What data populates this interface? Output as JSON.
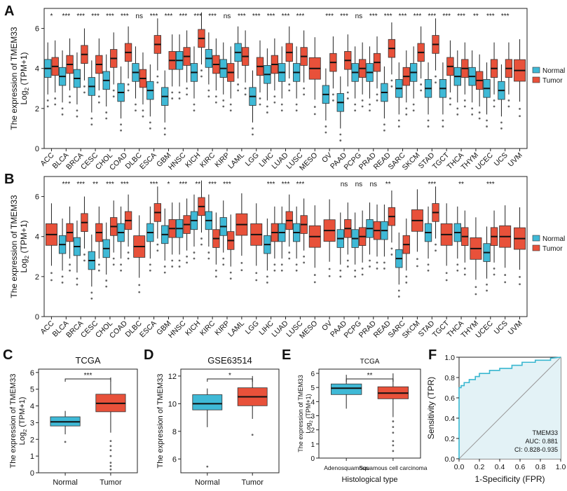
{
  "colors": {
    "normal": "#3fb9d6",
    "tumor": "#e8513a",
    "roc": "#39b7d0",
    "roc_fill": "#e3f2f6",
    "panel_bg": "#ffffff"
  },
  "chart_data": [
    {
      "panel": "A",
      "type": "boxplot",
      "ylabel": "The expression of TMEM33",
      "ylabel2": "Log2 (TPM+1)",
      "ylim": [
        0,
        7
      ],
      "yticks": [
        0,
        2,
        4,
        6
      ],
      "legend": [
        "Normal",
        "Tumor"
      ],
      "categories": [
        "ACC",
        "BLCA",
        "BRCA",
        "CESC",
        "CHOL",
        "COAD",
        "DLBC",
        "ESCA",
        "GBM",
        "HNSC",
        "KICH",
        "KIRC",
        "KIRP",
        "LAML",
        "LGG",
        "LIHC",
        "LUAD",
        "LUSC",
        "MESO",
        "OV",
        "PAAD",
        "PCPG",
        "PRAD",
        "READ",
        "SARC",
        "SKCM",
        "STAD",
        "TGCT",
        "THCA",
        "THYM",
        "UCEC",
        "UCS",
        "UVM"
      ],
      "significance": [
        "*",
        "***",
        "***",
        "***",
        "***",
        "***",
        "ns",
        "***",
        "***",
        "***",
        "***",
        "***",
        "ns",
        "***",
        "***",
        "***",
        "***",
        "***",
        "",
        "***",
        "***",
        "ns",
        "***",
        "***",
        "***",
        "***",
        "***",
        "***",
        "***",
        "**",
        "***",
        "***",
        ""
      ],
      "normal_median": [
        4.0,
        3.6,
        3.5,
        3.1,
        3.4,
        2.8,
        3.8,
        2.9,
        2.6,
        4.4,
        3.8,
        4.5,
        4.0,
        4.8,
        2.6,
        3.7,
        3.8,
        3.8,
        null,
        2.7,
        2.3,
        3.8,
        3.8,
        2.8,
        3.0,
        3.8,
        3.0,
        3.0,
        3.6,
        3.6,
        3.0,
        2.9,
        null
      ],
      "tumor_median": [
        4.1,
        4.2,
        4.7,
        4.2,
        4.5,
        4.8,
        3.5,
        5.2,
        4.4,
        4.6,
        5.5,
        4.2,
        3.8,
        4.6,
        4.1,
        4.2,
        4.8,
        4.6,
        4.0,
        4.3,
        4.4,
        4.0,
        4.3,
        5.0,
        3.6,
        4.8,
        5.2,
        4.1,
        4.0,
        3.4,
        4.0,
        4.0,
        3.9
      ]
    },
    {
      "panel": "B",
      "type": "boxplot",
      "ylabel": "The expression of TMEM33",
      "ylabel2": "Log2 (TPM+1)",
      "ylim": [
        0,
        7
      ],
      "yticks": [
        0,
        2,
        4,
        6
      ],
      "legend": [
        "Normal",
        "Tumor"
      ],
      "categories": [
        "ACC",
        "BLCA",
        "BRCA",
        "CESC",
        "CHOL",
        "COAD",
        "DLBC",
        "ESCA",
        "GBM",
        "HNSC",
        "KICH",
        "KIRC",
        "KIRP",
        "LAML",
        "LGG",
        "LIHC",
        "LUAD",
        "LUSC",
        "MESO",
        "OV",
        "PAAD",
        "PCPG",
        "PRAD",
        "READ",
        "SARC",
        "SKCM",
        "STAD",
        "TGCT",
        "THCA",
        "THYM",
        "UCEC",
        "UCS",
        "UVM"
      ],
      "significance": [
        "",
        "***",
        "***",
        "**",
        "***",
        "***",
        "",
        "***",
        "*",
        "***",
        "**",
        "***",
        "***",
        "",
        "",
        "***",
        "***",
        "***",
        "",
        "",
        "ns",
        "ns",
        "ns",
        "**",
        "",
        "",
        "***",
        "",
        "**",
        "",
        "***",
        "",
        ""
      ],
      "normal_median": [
        null,
        3.6,
        3.5,
        2.8,
        3.4,
        4.2,
        null,
        4.2,
        4.1,
        4.4,
        4.8,
        4.8,
        4.5,
        null,
        null,
        3.6,
        4.2,
        4.2,
        null,
        null,
        3.9,
        3.9,
        4.4,
        4.3,
        2.9,
        null,
        4.2,
        null,
        4.2,
        null,
        3.2,
        null,
        null
      ],
      "tumor_median": [
        4.1,
        4.2,
        4.7,
        4.2,
        4.5,
        4.8,
        3.5,
        5.2,
        4.4,
        4.6,
        5.5,
        3.9,
        3.8,
        4.6,
        4.1,
        4.2,
        4.8,
        4.6,
        4.0,
        4.3,
        4.4,
        4.0,
        4.3,
        5.0,
        3.6,
        4.8,
        5.2,
        4.1,
        4.0,
        3.4,
        4.0,
        4.0,
        3.9
      ]
    },
    {
      "panel": "C",
      "type": "boxplot",
      "title": "TCGA",
      "ylabel": "The expression of TMEM33",
      "ylabel2": "Log2 (TPM+1)",
      "ylim": [
        0,
        6.2
      ],
      "yticks": [
        0,
        1,
        2,
        3,
        4,
        5,
        6
      ],
      "categories": [
        "Normal",
        "Tumor"
      ],
      "significance": "***",
      "boxes": [
        {
          "name": "Normal",
          "q1": 2.8,
          "median": 3.05,
          "q3": 3.35,
          "lo": 2.3,
          "hi": 3.7,
          "outliers": [
            1.85
          ]
        },
        {
          "name": "Tumor",
          "q1": 3.65,
          "median": 4.15,
          "q3": 4.7,
          "lo": 2.4,
          "hi": 5.7,
          "outliers": [
            1.9,
            1.6,
            1.35,
            0.6,
            0.4,
            0.2,
            1.0
          ]
        }
      ]
    },
    {
      "panel": "D",
      "type": "boxplot",
      "title": "GSE63514",
      "ylabel": "The expression of TMEM33",
      "ylim": [
        5.0,
        12.5
      ],
      "yticks": [
        6,
        8,
        10,
        12
      ],
      "categories": [
        "Normal",
        "Tumor"
      ],
      "significance": "*",
      "boxes": [
        {
          "name": "Normal",
          "q1": 9.55,
          "median": 10.0,
          "q3": 10.65,
          "lo": 8.3,
          "hi": 11.1,
          "outliers": [
            5.45
          ]
        },
        {
          "name": "Tumor",
          "q1": 9.85,
          "median": 10.5,
          "q3": 11.15,
          "lo": 8.9,
          "hi": 12.0,
          "outliers": [
            7.75
          ]
        }
      ]
    },
    {
      "panel": "E",
      "type": "boxplot",
      "title": "TCGA",
      "ylabel": "The expression of TMEM33",
      "ylabel2": "Log2 (TPM+1)",
      "xlabel": "Histological type",
      "ylim": [
        0,
        6.3
      ],
      "yticks": [
        0,
        1,
        2,
        3,
        4,
        5,
        6
      ],
      "categories": [
        "Adenosquamous",
        "Squamous cell carcinoma"
      ],
      "significance": "**",
      "boxes": [
        {
          "name": "Adenosquamous",
          "q1": 4.5,
          "median": 4.95,
          "q3": 5.25,
          "lo": 3.5,
          "hi": 5.9,
          "outliers": []
        },
        {
          "name": "Squamous cell carcinoma",
          "q1": 4.2,
          "median": 4.6,
          "q3": 5.05,
          "lo": 2.9,
          "hi": 6.0,
          "outliers": [
            2.6,
            2.2,
            1.8,
            1.2,
            0.9,
            0.5
          ]
        }
      ]
    },
    {
      "panel": "F",
      "type": "line",
      "xlabel": "1-Specificity (FPR)",
      "ylabel": "Sensitivity (TPR)",
      "xlim": [
        0,
        1
      ],
      "ylim": [
        0,
        1
      ],
      "ticks": [
        0.0,
        0.2,
        0.4,
        0.6,
        0.8,
        1.0
      ],
      "annotation": [
        "TMEM33",
        "AUC: 0.881",
        "CI: 0.828-0.935"
      ],
      "roc": [
        [
          0,
          0
        ],
        [
          0,
          0.7
        ],
        [
          0.02,
          0.7
        ],
        [
          0.02,
          0.72
        ],
        [
          0.05,
          0.72
        ],
        [
          0.05,
          0.75
        ],
        [
          0.1,
          0.75
        ],
        [
          0.1,
          0.78
        ],
        [
          0.16,
          0.78
        ],
        [
          0.16,
          0.81
        ],
        [
          0.2,
          0.81
        ],
        [
          0.2,
          0.84
        ],
        [
          0.3,
          0.84
        ],
        [
          0.3,
          0.87
        ],
        [
          0.4,
          0.87
        ],
        [
          0.4,
          0.89
        ],
        [
          0.52,
          0.89
        ],
        [
          0.52,
          0.92
        ],
        [
          0.62,
          0.92
        ],
        [
          0.62,
          0.95
        ],
        [
          0.75,
          0.95
        ],
        [
          0.75,
          0.97
        ],
        [
          0.9,
          0.97
        ],
        [
          0.9,
          0.99
        ],
        [
          1.0,
          1.0
        ]
      ]
    }
  ]
}
